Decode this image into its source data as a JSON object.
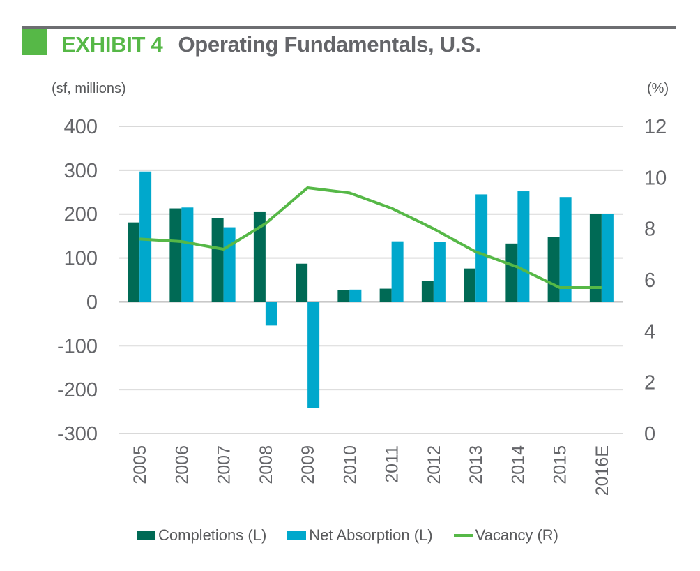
{
  "header": {
    "exhibit_label": "EXHIBIT 4",
    "title": "Operating Fundamentals, U.S."
  },
  "colors": {
    "completions": "#006a55",
    "net_absorption": "#00a8cc",
    "vacancy": "#56b847",
    "accent": "#56b847",
    "text": "#646569",
    "grid": "#d9d9d9"
  },
  "chart_data": {
    "type": "bar",
    "title": "Operating Fundamentals, U.S.",
    "ylabel": "(sf, millions)",
    "y2label": "(%)",
    "xlabel": "",
    "categories": [
      "2005",
      "2006",
      "2007",
      "2008",
      "2009",
      "2010",
      "2011",
      "2012",
      "2013",
      "2014",
      "2015",
      "2016E"
    ],
    "ylim": [
      -300,
      400
    ],
    "yticks": [
      "400",
      "300",
      "200",
      "100",
      "0",
      "-100",
      "-200",
      "-300"
    ],
    "ytick_values": [
      400,
      300,
      200,
      100,
      0,
      -100,
      -200,
      -300
    ],
    "y2lim": [
      0,
      12
    ],
    "y2ticks": [
      "12",
      "10",
      "8",
      "6",
      "4",
      "2",
      "0"
    ],
    "y2tick_values": [
      12,
      10,
      8,
      6,
      4,
      2,
      0
    ],
    "grid": true,
    "legend_position": "bottom",
    "series": [
      {
        "name": "Completions (L)",
        "type": "bar",
        "axis": "left",
        "values": [
          181,
          213,
          191,
          206,
          87,
          27,
          30,
          48,
          76,
          133,
          148,
          200
        ]
      },
      {
        "name": "Net Absorption (L)",
        "type": "bar",
        "axis": "left",
        "values": [
          297,
          215,
          170,
          -54,
          -242,
          28,
          138,
          137,
          245,
          252,
          239,
          200
        ]
      },
      {
        "name": "Vacancy (R)",
        "type": "line",
        "axis": "right",
        "values": [
          7.6,
          7.5,
          7.2,
          8.2,
          9.6,
          9.4,
          8.8,
          8.0,
          7.1,
          6.5,
          5.7,
          5.7
        ]
      }
    ]
  },
  "legend": [
    {
      "label": "Completions (L)",
      "kind": "box"
    },
    {
      "label": "Net Absorption (L)",
      "kind": "box"
    },
    {
      "label": "Vacancy (R)",
      "kind": "line"
    }
  ]
}
